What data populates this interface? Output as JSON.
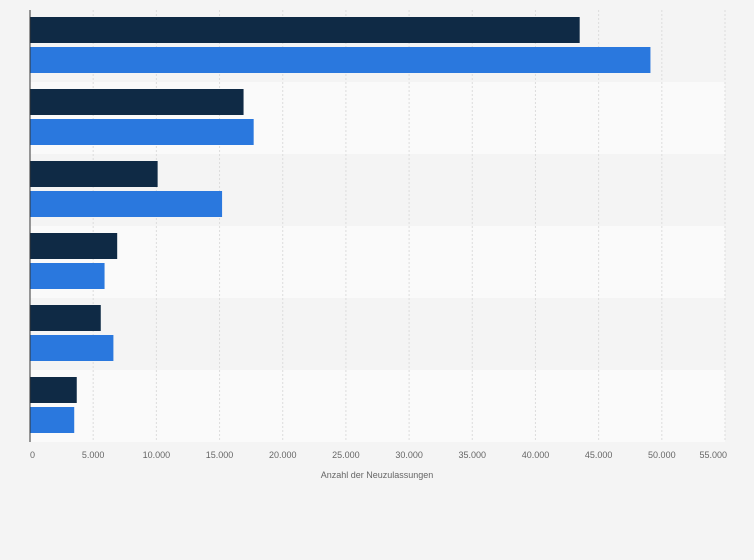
{
  "chart_data": {
    "type": "bar",
    "orientation": "horizontal",
    "title": "",
    "xlabel": "Anzahl der Neuzulassungen",
    "ylabel": "",
    "xlim": [
      0,
      55000
    ],
    "xticks": [
      0,
      5000,
      10000,
      15000,
      20000,
      25000,
      30000,
      35000,
      40000,
      45000,
      50000,
      55000
    ],
    "xtick_labels": [
      "0",
      "5.000",
      "10.000",
      "15.000",
      "20.000",
      "25.000",
      "30.000",
      "35.000",
      "40.000",
      "45.000",
      "50.000",
      "55.000"
    ],
    "categories": [
      "",
      "",
      "",
      "",
      "",
      ""
    ],
    "series": [
      {
        "color": "#0f2a45",
        "values": [
          43500,
          16900,
          10100,
          6900,
          5600,
          3700
        ]
      },
      {
        "color": "#2a78de",
        "values": [
          49100,
          17700,
          15200,
          5900,
          6600,
          3500
        ]
      }
    ],
    "grid": "vertical",
    "legend": "none"
  }
}
